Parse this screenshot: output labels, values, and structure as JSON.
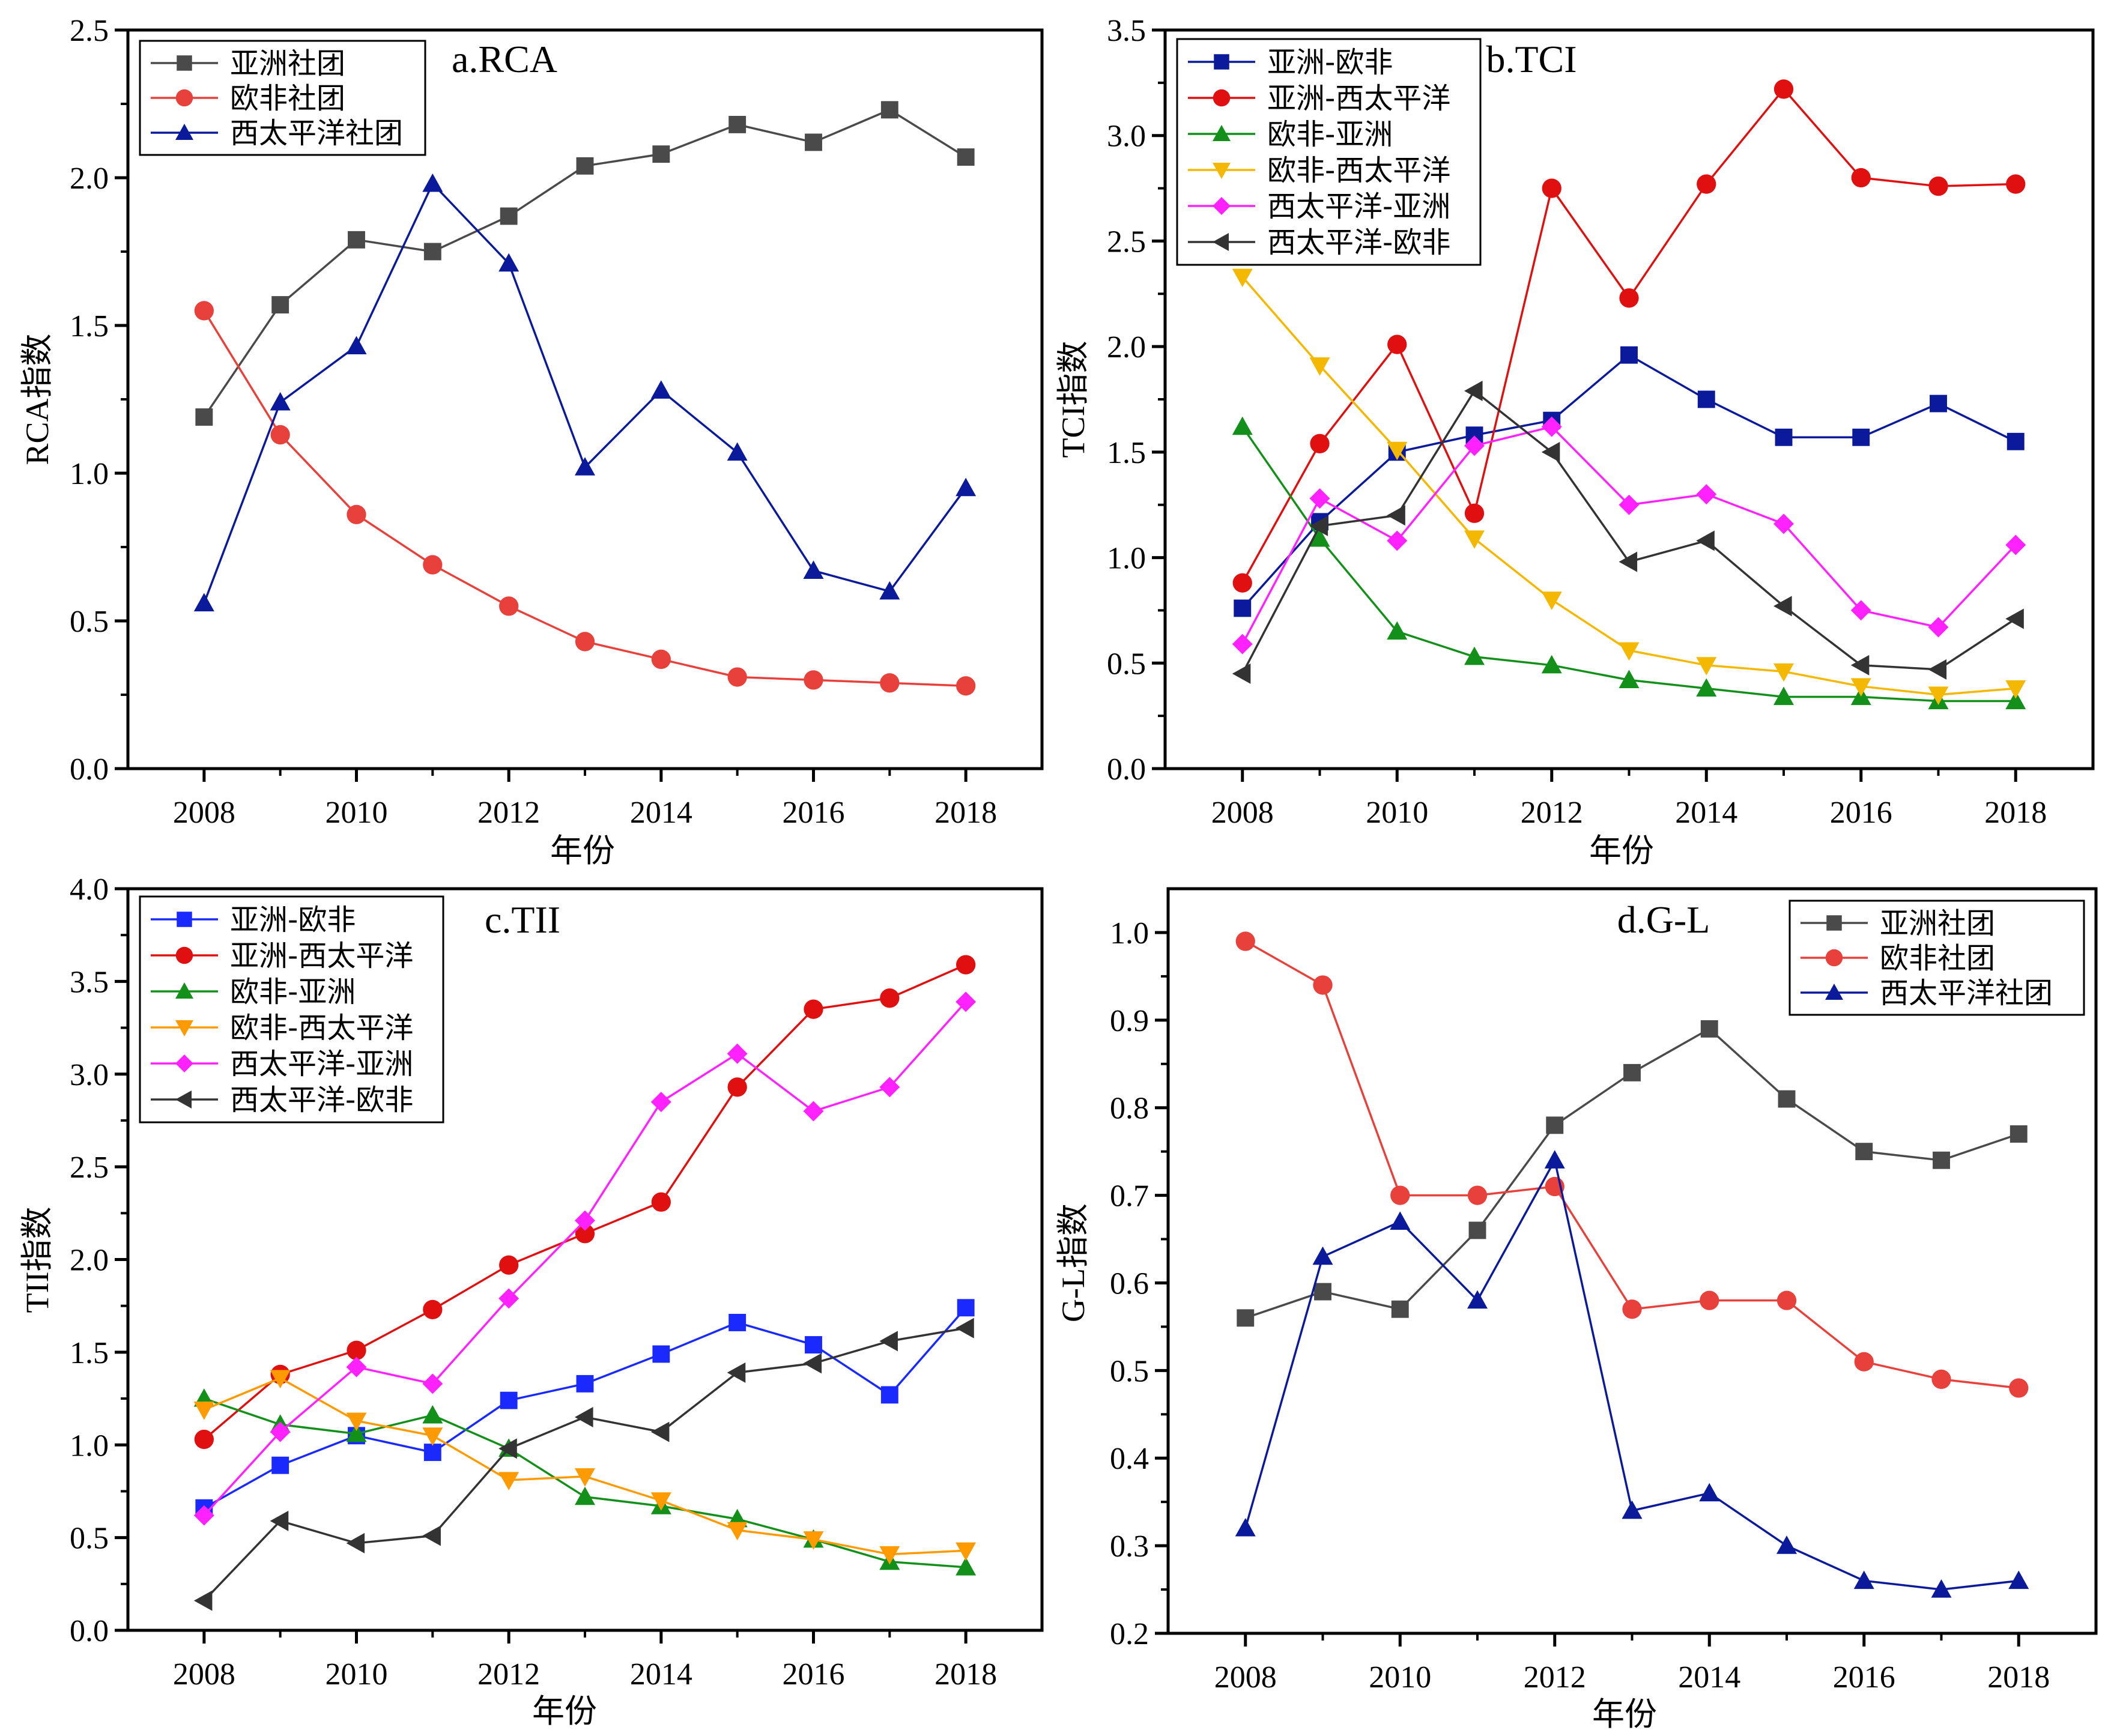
{
  "chart_data": [
    {
      "type": "line",
      "title": "a.RCA",
      "xlabel": "年份",
      "ylabel": "RCA指数",
      "xlim": [
        2007,
        2019
      ],
      "ylim": [
        0,
        2.5
      ],
      "yticks": [
        0,
        0.5,
        1.0,
        1.5,
        2.0,
        2.5
      ],
      "ytick_labels": [
        "0.0",
        "0.5",
        "1.0",
        "1.5",
        "2.0",
        "2.5"
      ],
      "xticks": [
        2008,
        2010,
        2012,
        2014,
        2016,
        2018
      ],
      "xtick_labels": [
        "2008",
        "2010",
        "2012",
        "2014",
        "2016",
        "2018"
      ],
      "x": [
        2008,
        2009,
        2010,
        2011,
        2012,
        2013,
        2014,
        2015,
        2016,
        2017,
        2018
      ],
      "legend_position": "top-left",
      "series": [
        {
          "name": "亚洲社团",
          "color": "#4a4a4a",
          "marker": "square",
          "values": [
            1.19,
            1.57,
            1.79,
            1.75,
            1.87,
            2.04,
            2.08,
            2.18,
            2.12,
            2.23,
            2.07
          ]
        },
        {
          "name": "欧非社团",
          "color": "#e8413c",
          "marker": "circle",
          "values": [
            1.55,
            1.13,
            0.86,
            0.69,
            0.55,
            0.43,
            0.37,
            0.31,
            0.3,
            0.29,
            0.28
          ]
        },
        {
          "name": "西太平洋社团",
          "color": "#0a1a9a",
          "marker": "triangle-up",
          "values": [
            0.56,
            1.24,
            1.43,
            1.98,
            1.71,
            1.02,
            1.28,
            1.07,
            0.67,
            0.6,
            0.95
          ]
        }
      ]
    },
    {
      "type": "line",
      "title": "b.TCI",
      "xlabel": "年份",
      "ylabel": "TCI指数",
      "xlim": [
        2007,
        2019
      ],
      "ylim": [
        0,
        3.5
      ],
      "yticks": [
        0,
        0.5,
        1.0,
        1.5,
        2.0,
        2.5,
        3.0,
        3.5
      ],
      "ytick_labels": [
        "0.0",
        "0.5",
        "1.0",
        "1.5",
        "2.0",
        "2.5",
        "3.0",
        "3.5"
      ],
      "xticks": [
        2008,
        2010,
        2012,
        2014,
        2016,
        2018
      ],
      "xtick_labels": [
        "2008",
        "2010",
        "2012",
        "2014",
        "2016",
        "2018"
      ],
      "x": [
        2008,
        2009,
        2010,
        2011,
        2012,
        2013,
        2014,
        2015,
        2016,
        2017,
        2018
      ],
      "legend_position": "top-left",
      "series": [
        {
          "name": "亚洲-欧非",
          "color": "#0a1a9a",
          "marker": "square",
          "values": [
            0.76,
            1.17,
            1.5,
            1.58,
            1.65,
            1.96,
            1.75,
            1.57,
            1.57,
            1.73,
            1.55
          ]
        },
        {
          "name": "亚洲-西太平洋",
          "color": "#e01010",
          "marker": "circle",
          "values": [
            0.88,
            1.54,
            2.01,
            1.21,
            2.75,
            2.23,
            2.77,
            3.22,
            2.8,
            2.76,
            2.77
          ]
        },
        {
          "name": "欧非-亚洲",
          "color": "#12901a",
          "marker": "triangle-up",
          "values": [
            1.62,
            1.09,
            0.65,
            0.53,
            0.49,
            0.42,
            0.38,
            0.34,
            0.34,
            0.32,
            0.32
          ]
        },
        {
          "name": "欧非-西太平洋",
          "color": "#f5b800",
          "marker": "triangle-down",
          "values": [
            2.33,
            1.91,
            1.51,
            1.09,
            0.8,
            0.56,
            0.49,
            0.46,
            0.39,
            0.35,
            0.38
          ]
        },
        {
          "name": "西太平洋-亚洲",
          "color": "#ff22ff",
          "marker": "diamond",
          "values": [
            0.59,
            1.28,
            1.08,
            1.53,
            1.62,
            1.25,
            1.3,
            1.16,
            0.75,
            0.67,
            1.06
          ]
        },
        {
          "name": "西太平洋-欧非",
          "color": "#333333",
          "marker": "triangle-left",
          "values": [
            0.45,
            1.15,
            1.2,
            1.79,
            1.5,
            0.98,
            1.08,
            0.77,
            0.49,
            0.47,
            0.71
          ]
        }
      ]
    },
    {
      "type": "line",
      "title": "c.TII",
      "xlabel": "年份",
      "ylabel": "TII指数",
      "xlim": [
        2007,
        2019
      ],
      "ylim": [
        0,
        4.0
      ],
      "yticks": [
        0,
        0.5,
        1.0,
        1.5,
        2.0,
        2.5,
        3.0,
        3.5,
        4.0
      ],
      "ytick_labels": [
        "0.0",
        "0.5",
        "1.0",
        "1.5",
        "2.0",
        "2.5",
        "3.0",
        "3.5",
        "4.0"
      ],
      "xticks": [
        2008,
        2010,
        2012,
        2014,
        2016,
        2018
      ],
      "xtick_labels": [
        "2008",
        "2010",
        "2012",
        "2014",
        "2016",
        "2018"
      ],
      "x": [
        2008,
        2009,
        2010,
        2011,
        2012,
        2013,
        2014,
        2015,
        2016,
        2017,
        2018
      ],
      "legend_position": "top-left",
      "series": [
        {
          "name": "亚洲-欧非",
          "color": "#1a2aff",
          "marker": "square",
          "values": [
            0.66,
            0.89,
            1.05,
            0.96,
            1.24,
            1.33,
            1.49,
            1.66,
            1.54,
            1.27,
            1.74
          ]
        },
        {
          "name": "亚洲-西太平洋",
          "color": "#e01010",
          "marker": "circle",
          "values": [
            1.03,
            1.38,
            1.51,
            1.73,
            1.97,
            2.14,
            2.31,
            2.93,
            3.35,
            3.41,
            3.59
          ]
        },
        {
          "name": "欧非-亚洲",
          "color": "#12901a",
          "marker": "triangle-up",
          "values": [
            1.25,
            1.11,
            1.06,
            1.16,
            0.98,
            0.72,
            0.67,
            0.6,
            0.49,
            0.37,
            0.34
          ]
        },
        {
          "name": "欧非-西太平洋",
          "color": "#ff9a00",
          "marker": "triangle-down",
          "values": [
            1.19,
            1.36,
            1.13,
            1.05,
            0.81,
            0.83,
            0.7,
            0.54,
            0.49,
            0.41,
            0.43
          ]
        },
        {
          "name": "西太平洋-亚洲",
          "color": "#ff22ff",
          "marker": "diamond",
          "values": [
            0.62,
            1.07,
            1.42,
            1.33,
            1.79,
            2.21,
            2.85,
            3.11,
            2.8,
            2.93,
            3.39
          ]
        },
        {
          "name": "西太平洋-欧非",
          "color": "#333333",
          "marker": "triangle-left",
          "values": [
            0.16,
            0.59,
            0.47,
            0.51,
            0.98,
            1.15,
            1.07,
            1.39,
            1.44,
            1.56,
            1.63
          ]
        }
      ]
    },
    {
      "type": "line",
      "title": "d.G-L",
      "xlabel": "年份",
      "ylabel": "G-L指数",
      "xlim": [
        2007,
        2019
      ],
      "ylim": [
        0.2,
        1.05
      ],
      "yticks": [
        0.2,
        0.3,
        0.4,
        0.5,
        0.6,
        0.7,
        0.8,
        0.9,
        1.0
      ],
      "ytick_labels": [
        "0.2",
        "0.3",
        "0.4",
        "0.5",
        "0.6",
        "0.7",
        "0.8",
        "0.9",
        "1.0"
      ],
      "xticks": [
        2008,
        2010,
        2012,
        2014,
        2016,
        2018
      ],
      "xtick_labels": [
        "2008",
        "2010",
        "2012",
        "2014",
        "2016",
        "2018"
      ],
      "x": [
        2008,
        2009,
        2010,
        2011,
        2012,
        2013,
        2014,
        2015,
        2016,
        2017,
        2018
      ],
      "legend_position": "top-right",
      "series": [
        {
          "name": "亚洲社团",
          "color": "#4a4a4a",
          "marker": "square",
          "values": [
            0.56,
            0.59,
            0.57,
            0.66,
            0.78,
            0.84,
            0.89,
            0.81,
            0.75,
            0.74,
            0.77
          ]
        },
        {
          "name": "欧非社团",
          "color": "#e8413c",
          "marker": "circle",
          "values": [
            0.99,
            0.94,
            0.7,
            0.7,
            0.71,
            0.57,
            0.58,
            0.58,
            0.51,
            0.49,
            0.48
          ]
        },
        {
          "name": "西太平洋社团",
          "color": "#0a1a9a",
          "marker": "triangle-up",
          "values": [
            0.32,
            0.63,
            0.67,
            0.58,
            0.74,
            0.34,
            0.36,
            0.3,
            0.26,
            0.25,
            0.26
          ]
        }
      ]
    }
  ]
}
